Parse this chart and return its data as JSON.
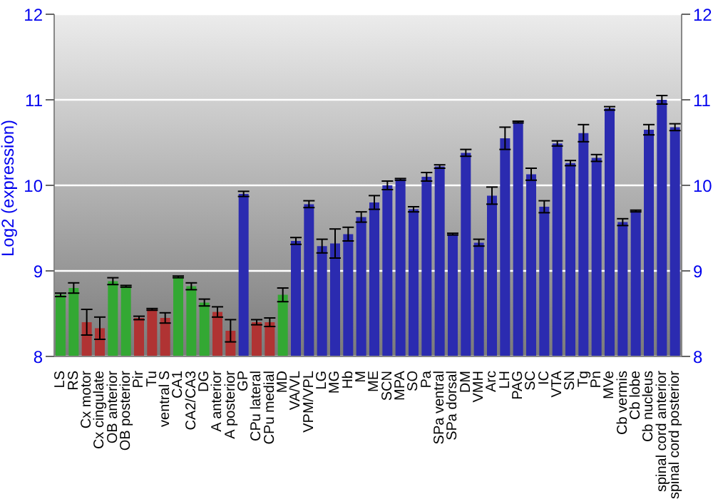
{
  "chart_data": {
    "type": "bar",
    "ylabel": "Log2 (expression)",
    "categories": [
      "LS",
      "RS",
      "Cx motor",
      "Cx cingulate",
      "OB anterior",
      "OB posterior",
      "Pir",
      "Tu",
      "ventral S",
      "CA1",
      "CA2/CA3",
      "DG",
      "A anterior",
      "A posterior",
      "GP",
      "CPu lateral",
      "CPu medial",
      "MD",
      "VA/VL",
      "VPM/VPL",
      "LG",
      "MG",
      "Hb",
      "M",
      "ME",
      "SCN",
      "MPA",
      "SO",
      "Pa",
      "SPa ventral",
      "SPa dorsal",
      "DM",
      "VMH",
      "Arc",
      "LH",
      "PAG",
      "SC",
      "IC",
      "VTA",
      "SN",
      "Tg",
      "Pn",
      "MVe",
      "Cb vermis",
      "Cb lobe",
      "Cb nucleus",
      "spinal cord anterior",
      "spinal cord posterior"
    ],
    "values": [
      8.72,
      8.8,
      8.4,
      8.33,
      8.88,
      8.82,
      8.45,
      8.55,
      8.45,
      8.93,
      8.82,
      8.63,
      8.52,
      8.3,
      9.9,
      8.4,
      8.4,
      8.72,
      9.35,
      9.78,
      9.29,
      9.32,
      9.43,
      9.63,
      9.8,
      10.0,
      10.07,
      9.72,
      10.1,
      10.22,
      9.43,
      10.38,
      9.33,
      9.88,
      10.55,
      10.74,
      10.13,
      9.75,
      10.49,
      10.26,
      10.61,
      10.32,
      10.9,
      9.57,
      9.7,
      10.65,
      11.0,
      10.68
    ],
    "errors": [
      0.02,
      0.06,
      0.15,
      0.13,
      0.04,
      0.01,
      0.02,
      0.01,
      0.06,
      0.01,
      0.04,
      0.04,
      0.06,
      0.13,
      0.03,
      0.03,
      0.05,
      0.08,
      0.04,
      0.04,
      0.08,
      0.17,
      0.08,
      0.06,
      0.08,
      0.05,
      0.01,
      0.03,
      0.05,
      0.02,
      0.01,
      0.04,
      0.04,
      0.1,
      0.13,
      0.01,
      0.07,
      0.07,
      0.03,
      0.03,
      0.1,
      0.04,
      0.02,
      0.04,
      0.01,
      0.06,
      0.05,
      0.04
    ],
    "colors": [
      "#33a833",
      "#33a833",
      "#b03333",
      "#b03333",
      "#33a833",
      "#33a833",
      "#b03333",
      "#b03333",
      "#b03333",
      "#33a833",
      "#33a833",
      "#33a833",
      "#b03333",
      "#b03333",
      "#2b2bb0",
      "#b03333",
      "#b03333",
      "#33a833",
      "#2b2bb0",
      "#2b2bb0",
      "#2b2bb0",
      "#2b2bb0",
      "#2b2bb0",
      "#2b2bb0",
      "#2b2bb0",
      "#2b2bb0",
      "#2b2bb0",
      "#2b2bb0",
      "#2b2bb0",
      "#2b2bb0",
      "#2b2bb0",
      "#2b2bb0",
      "#2b2bb0",
      "#2b2bb0",
      "#2b2bb0",
      "#2b2bb0",
      "#2b2bb0",
      "#2b2bb0",
      "#2b2bb0",
      "#2b2bb0",
      "#2b2bb0",
      "#2b2bb0",
      "#2b2bb0",
      "#2b2bb0",
      "#2b2bb0",
      "#2b2bb0",
      "#2b2bb0",
      "#2b2bb0"
    ],
    "ylim": [
      8,
      12
    ],
    "yticks": [
      8,
      9,
      10,
      11,
      12
    ],
    "y2lim": [
      8,
      12
    ],
    "y2ticks": [
      8,
      9,
      10,
      11,
      12
    ],
    "grid": "y"
  }
}
